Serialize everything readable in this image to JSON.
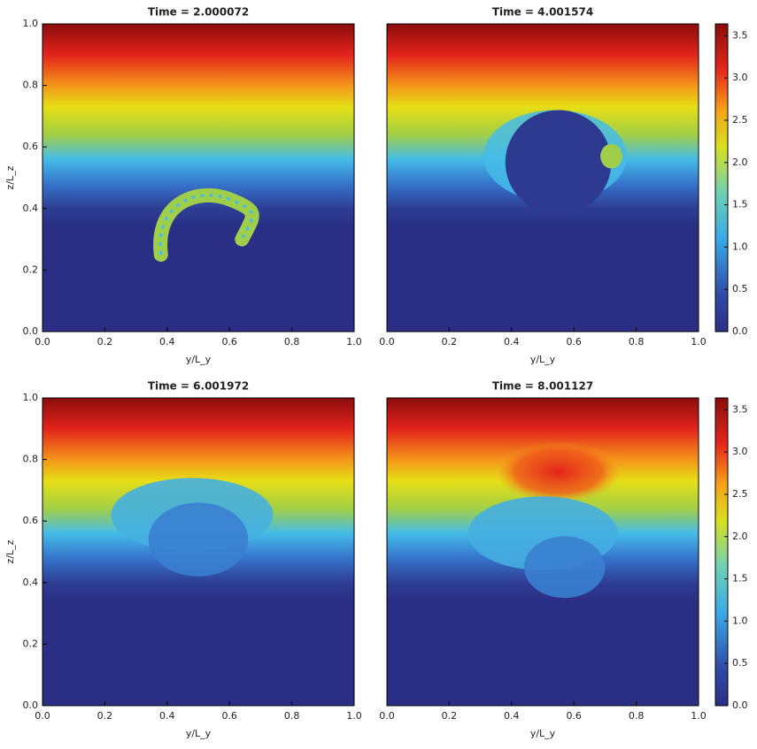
{
  "chart_data": [
    {
      "type": "heatmap",
      "title": "Time = 2.000072",
      "xlabel": "y/L_y",
      "ylabel": "z/L_z",
      "xlim": [
        0,
        1
      ],
      "xticks": [
        {
          "value": 0,
          "label": "0.0"
        },
        0.2,
        0.4,
        0.6,
        0.8,
        {
          "value": 1,
          "label": "1.0"
        }
      ],
      "ylim": [
        0,
        1
      ],
      "yticks": [
        {
          "value": 0,
          "label": "0.0"
        },
        0.2,
        0.4,
        0.6,
        0.8,
        {
          "value": 1,
          "label": "1.0"
        }
      ]
    },
    {
      "type": "heatmap",
      "title": "Time = 4.001574",
      "xlabel": "y/L_y",
      "xlim": [
        0,
        1
      ],
      "xticks": [
        {
          "value": 0,
          "label": "0.0"
        },
        0.2,
        0.4,
        0.6,
        0.8,
        {
          "value": 1,
          "label": "1.0"
        }
      ],
      "ylim": [
        0,
        1
      ],
      "clim": [
        0,
        3.64
      ],
      "cticks": [
        {
          "value": 0,
          "label": "0.0"
        },
        0.5,
        {
          "value": 1,
          "label": "1.0"
        },
        1.5,
        {
          "value": 2,
          "label": "2.0"
        },
        2.5,
        {
          "value": 3,
          "label": "3.0"
        },
        3.5
      ]
    },
    {
      "type": "heatmap",
      "title": "Time = 6.001972",
      "xlabel": "y/L_y",
      "ylabel": "z/L_z",
      "xlim": [
        0,
        1
      ],
      "xticks": [
        {
          "value": 0,
          "label": "0.0"
        },
        0.2,
        0.4,
        0.6,
        0.8,
        {
          "value": 1,
          "label": "1.0"
        }
      ],
      "ylim": [
        0,
        1
      ],
      "yticks": [
        {
          "value": 0,
          "label": "0.0"
        },
        0.2,
        0.4,
        0.6,
        0.8,
        {
          "value": 1,
          "label": "1.0"
        }
      ]
    },
    {
      "type": "heatmap",
      "title": "Time = 8.001127",
      "xlabel": "y/L_y",
      "xlim": [
        0,
        1
      ],
      "xticks": [
        {
          "value": 0,
          "label": "0.0"
        },
        0.2,
        0.4,
        0.6,
        0.8,
        {
          "value": 1,
          "label": "1.0"
        }
      ],
      "ylim": [
        0,
        1
      ],
      "clim": [
        0,
        3.64
      ],
      "cticks": [
        {
          "value": 0,
          "label": "0.0"
        },
        0.5,
        {
          "value": 1,
          "label": "1.0"
        },
        1.5,
        {
          "value": 2,
          "label": "2.0"
        },
        2.5,
        {
          "value": 3,
          "label": "3.0"
        },
        3.5
      ]
    }
  ]
}
